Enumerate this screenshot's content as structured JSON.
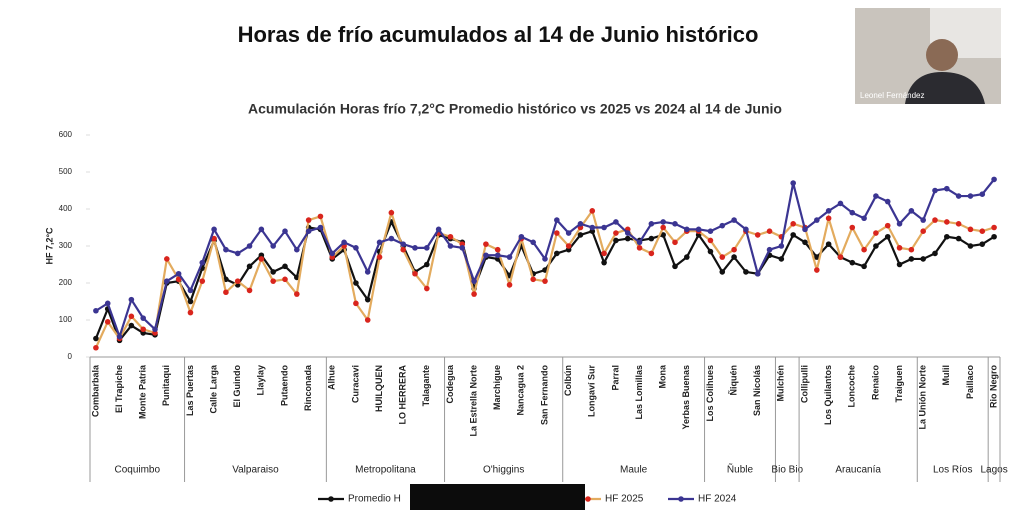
{
  "slide_title": "Horas de frío acumulados al 14 de Junio histórico",
  "presenter": "Leonel Fernández",
  "chart_data": {
    "type": "line",
    "title": "Acumulación Horas frío 7,2°C Promedio histórico vs 2025 vs 2024 al 14 de Junio",
    "y_label": "HF 7,2°C",
    "categories": [
      "Combarbala",
      null,
      "El Trapiche",
      null,
      "Monte Patria",
      null,
      "Punitaqui",
      null,
      "Las Puertas",
      null,
      "Calle Larga",
      null,
      "El Guindo",
      null,
      "Llaylay",
      null,
      "Putaendo",
      null,
      "Rinconada",
      null,
      "Alhue",
      null,
      "Curacavi",
      null,
      "HUILQUEN",
      null,
      "LO HERRERA",
      null,
      "Talagante",
      null,
      "Codegua",
      null,
      "La Estrella Norte",
      null,
      "Marchigue",
      null,
      "Nancagua 2",
      null,
      "San Fernando",
      null,
      "Colbún",
      null,
      "Longaví Sur",
      null,
      "Parral",
      null,
      "Las Lomillas",
      null,
      "Mona",
      null,
      "Yerbas Buenas",
      null,
      "Los Colihues",
      null,
      "Ñiquén",
      null,
      "San Nicolás",
      null,
      "Mulchén",
      null,
      "Collipulli",
      null,
      "Los Quilantos",
      null,
      "Loncoche",
      null,
      "Renaico",
      null,
      "Traiguen",
      null,
      "La Unión Norte",
      null,
      "Mulil",
      null,
      "Paillaco",
      null,
      "Rio Negro"
    ],
    "groups": [
      {
        "name": "Coquimbo",
        "start": 0,
        "end": 7
      },
      {
        "name": "Valparaiso",
        "start": 8,
        "end": 19
      },
      {
        "name": "Metropolitana",
        "start": 20,
        "end": 29
      },
      {
        "name": "O'higgins",
        "start": 30,
        "end": 39
      },
      {
        "name": "Maule",
        "start": 40,
        "end": 51
      },
      {
        "name": "Ñuble",
        "start": 52,
        "end": 57
      },
      {
        "name": "Bio Bio",
        "start": 58,
        "end": 59
      },
      {
        "name": "Araucanía",
        "start": 60,
        "end": 69
      },
      {
        "name": "Los Ríos",
        "start": 70,
        "end": 75
      },
      {
        "name": "Lagos",
        "start": 76,
        "end": 76
      }
    ],
    "series": [
      {
        "name": "Promedio H",
        "color": "#111111",
        "marker_color": "#111111",
        "values": [
          50,
          130,
          45,
          85,
          65,
          60,
          200,
          205,
          150,
          240,
          315,
          210,
          195,
          245,
          275,
          230,
          245,
          215,
          350,
          345,
          265,
          290,
          200,
          155,
          285,
          365,
          300,
          230,
          250,
          330,
          320,
          310,
          185,
          270,
          265,
          220,
          300,
          225,
          235,
          280,
          290,
          330,
          340,
          255,
          315,
          320,
          315,
          320,
          330,
          245,
          270,
          330,
          285,
          230,
          270,
          230,
          225,
          275,
          265,
          330,
          310,
          270,
          305,
          270,
          255,
          245,
          300,
          325,
          250,
          265,
          265,
          280,
          325,
          320,
          300,
          305,
          325
        ]
      },
      {
        "name": "HF 2025",
        "color": "#e3ab5e",
        "marker_color": "#d9251d",
        "values": [
          25,
          95,
          50,
          110,
          75,
          65,
          265,
          210,
          120,
          205,
          320,
          175,
          205,
          180,
          265,
          205,
          210,
          170,
          370,
          380,
          270,
          300,
          145,
          100,
          270,
          390,
          290,
          225,
          185,
          335,
          325,
          305,
          170,
          305,
          290,
          195,
          320,
          210,
          205,
          335,
          300,
          350,
          395,
          280,
          335,
          345,
          295,
          280,
          350,
          310,
          340,
          340,
          315,
          270,
          290,
          340,
          330,
          340,
          325,
          360,
          350,
          235,
          375,
          270,
          350,
          290,
          335,
          355,
          295,
          290,
          340,
          370,
          365,
          360,
          345,
          340,
          350
        ]
      },
      {
        "name": "HF 2024",
        "color": "#3b3592",
        "marker_color": "#3b3592",
        "values": [
          125,
          145,
          55,
          155,
          105,
          75,
          205,
          225,
          180,
          255,
          345,
          290,
          280,
          300,
          345,
          300,
          340,
          290,
          340,
          350,
          280,
          310,
          295,
          230,
          310,
          320,
          305,
          295,
          295,
          345,
          300,
          295,
          205,
          275,
          275,
          270,
          325,
          310,
          265,
          370,
          335,
          360,
          350,
          350,
          365,
          335,
          310,
          360,
          365,
          360,
          345,
          345,
          340,
          355,
          370,
          345,
          225,
          290,
          300,
          470,
          345,
          370,
          395,
          415,
          390,
          375,
          435,
          420,
          360,
          395,
          370,
          450,
          455,
          435,
          435,
          440,
          480
        ]
      }
    ],
    "ylim": [
      0,
      600
    ],
    "yticks": [
      0,
      100,
      200,
      300,
      400,
      500,
      600
    ],
    "grid": false
  }
}
